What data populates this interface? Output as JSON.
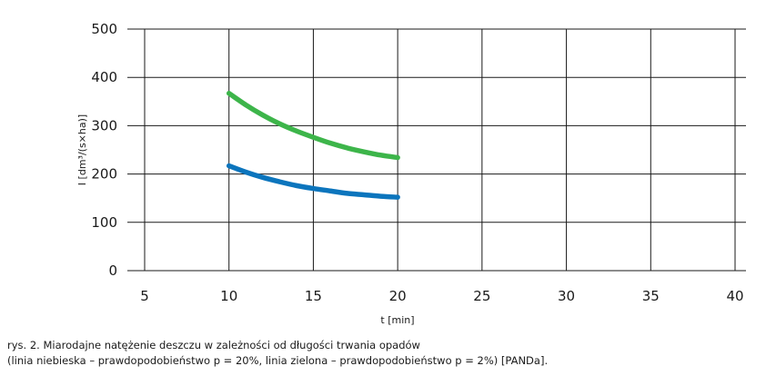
{
  "chart_data": {
    "type": "line",
    "xlabel": "t [min]",
    "ylabel": "I [dm³/(s×ha)]",
    "xlim": [
      5,
      40
    ],
    "ylim": [
      0,
      500
    ],
    "xticks": [
      5,
      10,
      15,
      20,
      25,
      30,
      35,
      40
    ],
    "yticks": [
      0,
      100,
      200,
      300,
      400,
      500
    ],
    "grid": true,
    "series": [
      {
        "color": "#3db54a",
        "x": [
          10,
          11,
          12,
          13,
          14,
          15,
          16,
          17,
          18,
          19,
          20
        ],
        "y": [
          367,
          343,
          322,
          304,
          289,
          276,
          264,
          254,
          246,
          239,
          234
        ]
      },
      {
        "color": "#0c75bd",
        "x": [
          10,
          11,
          12,
          13,
          14,
          15,
          16,
          17,
          18,
          19,
          20
        ],
        "y": [
          217,
          204,
          193,
          184,
          176,
          170,
          165,
          160,
          157,
          154,
          152
        ]
      }
    ]
  },
  "caption": {
    "line1": "rys. 2. Miarodajne natężenie deszczu w zależności od długości trwania opadów",
    "line2": "(linia niebieska – prawdopodobieństwo p = 20%, linia zielona – prawdopodobieństwo p = 2%) [PANDa]."
  }
}
